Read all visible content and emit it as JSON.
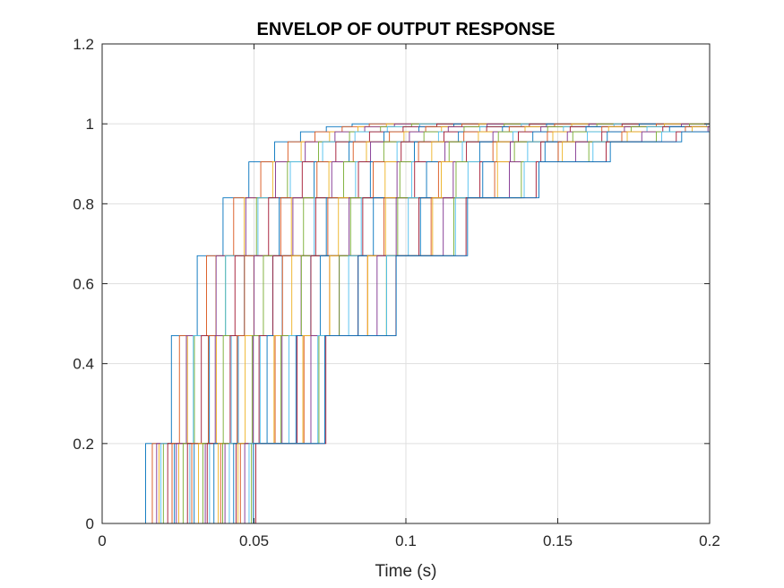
{
  "chart_data": {
    "type": "line",
    "title": "ENVELOP OF OUTPUT RESPONSE",
    "xlabel": "Time (s)",
    "ylabel": "",
    "xlim": [
      0,
      0.2
    ],
    "ylim": [
      0,
      1.2
    ],
    "xticks": [
      0,
      0.05,
      0.1,
      0.15,
      0.2
    ],
    "xtick_labels": [
      "0",
      "0.05",
      "0.1",
      "0.15",
      "0.2"
    ],
    "yticks": [
      0,
      0.2,
      0.4,
      0.6,
      0.8,
      1.0,
      1.2
    ],
    "ytick_labels": [
      "0",
      "0.2",
      "0.4",
      "0.6",
      "0.8",
      "1",
      "1.2"
    ],
    "grid": true,
    "legend": false,
    "step_levels": [
      0,
      0.2,
      0.47,
      0.67,
      0.815,
      0.905,
      0.955,
      0.98,
      0.993,
      1.0
    ],
    "series_color_cycle": [
      "#0072BD",
      "#D95319",
      "#EDB120",
      "#7E2F8E",
      "#77AC30",
      "#4DBEEE",
      "#A2142F"
    ],
    "series_count": 36,
    "first_step_time_range": [
      0.0155,
      0.051
    ],
    "step_interval_range": [
      0.0085,
      0.0235
    ],
    "final_value": 1.0
  }
}
